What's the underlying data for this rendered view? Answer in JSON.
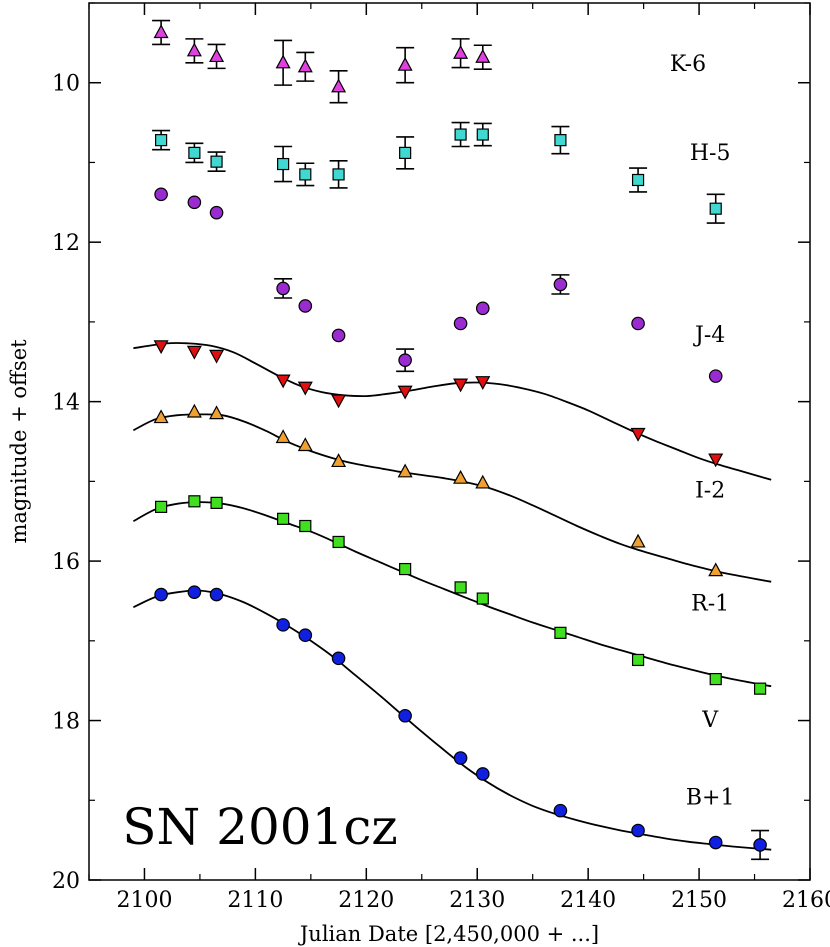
{
  "chart_data": {
    "type": "scatter",
    "title": "SN 2001cz",
    "xlabel": "Julian Date [2,450,000 + ...]",
    "ylabel": "magnitude + offset",
    "xlim": [
      2095,
      2160
    ],
    "ylim": [
      20,
      9
    ],
    "y_inverted": true,
    "x_ticks": [
      2100,
      2110,
      2120,
      2130,
      2140,
      2150,
      2160
    ],
    "y_ticks": [
      10,
      12,
      14,
      16,
      18,
      20
    ],
    "legend": "none",
    "series": [
      {
        "name": "K-6",
        "marker": "triangle-up",
        "color": "#e040e0",
        "x": [
          2101.5,
          2104.5,
          2106.5,
          2112.5,
          2114.5,
          2117.5,
          2123.5,
          2128.5,
          2130.5
        ],
        "y": [
          9.37,
          9.6,
          9.67,
          9.75,
          9.8,
          10.05,
          9.78,
          9.63,
          9.68
        ],
        "err": [
          0.15,
          0.15,
          0.15,
          0.28,
          0.18,
          0.2,
          0.22,
          0.18,
          0.15
        ]
      },
      {
        "name": "H-5",
        "marker": "square",
        "color": "#40d8d0",
        "x": [
          2101.5,
          2104.5,
          2106.5,
          2112.5,
          2114.5,
          2117.5,
          2123.5,
          2128.5,
          2130.5,
          2137.5,
          2144.5,
          2151.5
        ],
        "y": [
          10.72,
          10.88,
          10.99,
          11.02,
          11.15,
          11.15,
          10.88,
          10.65,
          10.65,
          10.72,
          11.22,
          11.58
        ],
        "err": [
          0.12,
          0.12,
          0.12,
          0.22,
          0.14,
          0.17,
          0.2,
          0.15,
          0.14,
          0.17,
          0.15,
          0.18
        ]
      },
      {
        "name": "J-4",
        "marker": "circle",
        "color": "#9a2bd0",
        "x": [
          2101.5,
          2104.5,
          2106.5,
          2112.5,
          2114.5,
          2117.5,
          2123.5,
          2128.5,
          2130.5,
          2137.5,
          2144.5,
          2151.5
        ],
        "y": [
          11.4,
          11.5,
          11.63,
          12.58,
          12.8,
          13.17,
          13.48,
          13.02,
          12.83,
          12.53,
          13.02,
          13.68
        ],
        "err": [
          0,
          0,
          0,
          0.12,
          0,
          0,
          0.14,
          0,
          0,
          0.12,
          0,
          0
        ]
      },
      {
        "name": "I-2",
        "marker": "triangle-down",
        "color": "#e01010",
        "x": [
          2101.5,
          2104.5,
          2106.5,
          2112.5,
          2114.5,
          2117.5,
          2123.5,
          2128.5,
          2130.5,
          2144.5,
          2151.5
        ],
        "y": [
          13.3,
          13.37,
          13.42,
          13.73,
          13.82,
          13.98,
          13.87,
          13.78,
          13.75,
          14.4,
          14.72
        ],
        "fit_x": [
          2099,
          2102,
          2104,
          2106,
          2108,
          2110,
          2112,
          2114,
          2116,
          2118,
          2120,
          2122,
          2124,
          2126,
          2128,
          2130,
          2132,
          2134,
          2136,
          2138,
          2140,
          2142,
          2144,
          2146,
          2148,
          2150,
          2152,
          2154,
          2156.5
        ],
        "fit_y": [
          13.33,
          13.27,
          13.27,
          13.3,
          13.38,
          13.52,
          13.67,
          13.8,
          13.88,
          13.92,
          13.93,
          13.9,
          13.86,
          13.81,
          13.77,
          13.76,
          13.78,
          13.83,
          13.9,
          14.0,
          14.11,
          14.24,
          14.37,
          14.49,
          14.6,
          14.71,
          14.8,
          14.88,
          14.98
        ]
      },
      {
        "name": "R-1",
        "marker": "triangle-up",
        "color": "#f0a030",
        "x": [
          2101.5,
          2104.5,
          2106.5,
          2112.5,
          2114.5,
          2117.5,
          2123.5,
          2128.5,
          2130.5,
          2144.5,
          2151.5
        ],
        "y": [
          14.2,
          14.13,
          14.15,
          14.45,
          14.55,
          14.75,
          14.88,
          14.96,
          15.02,
          15.76,
          16.12
        ],
        "fit_x": [
          2099,
          2101,
          2103,
          2105,
          2107,
          2109,
          2111,
          2113,
          2115,
          2117,
          2119,
          2121,
          2123,
          2125,
          2127,
          2129,
          2131,
          2133,
          2135,
          2137,
          2139,
          2141,
          2143,
          2145,
          2147,
          2149,
          2151,
          2153,
          2156.5
        ],
        "fit_y": [
          14.36,
          14.22,
          14.17,
          14.16,
          14.17,
          14.25,
          14.37,
          14.51,
          14.62,
          14.71,
          14.78,
          14.83,
          14.88,
          14.92,
          14.96,
          15.01,
          15.08,
          15.18,
          15.3,
          15.43,
          15.56,
          15.68,
          15.79,
          15.88,
          15.96,
          16.04,
          16.11,
          16.17,
          16.26
        ]
      },
      {
        "name": "V",
        "marker": "square",
        "color": "#40e020",
        "x": [
          2101.5,
          2104.5,
          2106.5,
          2112.5,
          2114.5,
          2117.5,
          2123.5,
          2128.5,
          2130.5,
          2137.5,
          2144.5,
          2151.5,
          2155.5
        ],
        "y": [
          15.32,
          15.25,
          15.27,
          15.47,
          15.56,
          15.76,
          16.1,
          16.33,
          16.47,
          16.9,
          17.24,
          17.48,
          17.6
        ],
        "fit_x": [
          2099,
          2101,
          2103,
          2105,
          2107,
          2109,
          2111,
          2113,
          2115,
          2117,
          2119,
          2121,
          2123,
          2125,
          2127,
          2129,
          2131,
          2133,
          2135,
          2137,
          2139,
          2141,
          2143,
          2145,
          2147,
          2149,
          2151,
          2153,
          2156.5
        ],
        "fit_y": [
          15.5,
          15.35,
          15.28,
          15.26,
          15.28,
          15.34,
          15.43,
          15.53,
          15.63,
          15.75,
          15.88,
          16.0,
          16.12,
          16.24,
          16.35,
          16.46,
          16.57,
          16.67,
          16.77,
          16.86,
          16.95,
          17.04,
          17.12,
          17.2,
          17.28,
          17.35,
          17.42,
          17.48,
          17.57
        ]
      },
      {
        "name": "B+1",
        "marker": "circle",
        "color": "#1020e0",
        "x": [
          2101.5,
          2104.5,
          2106.5,
          2112.5,
          2114.5,
          2117.5,
          2123.5,
          2128.5,
          2130.5,
          2137.5,
          2144.5,
          2151.5,
          2155.5
        ],
        "y": [
          16.42,
          16.39,
          16.42,
          16.8,
          16.93,
          17.22,
          17.94,
          18.47,
          18.67,
          19.13,
          19.38,
          19.53,
          19.56
        ],
        "err": [
          0,
          0,
          0,
          0,
          0,
          0,
          0,
          0,
          0,
          0,
          0,
          0,
          0.18
        ],
        "fit_x": [
          2099,
          2101,
          2103,
          2105,
          2107,
          2109,
          2111,
          2113,
          2115,
          2117,
          2119,
          2121,
          2123,
          2125,
          2127,
          2129,
          2131,
          2133,
          2135,
          2137,
          2139,
          2141,
          2143,
          2145,
          2147,
          2149,
          2151,
          2153,
          2156.5
        ],
        "fit_y": [
          16.58,
          16.45,
          16.39,
          16.37,
          16.42,
          16.52,
          16.66,
          16.82,
          17.0,
          17.2,
          17.43,
          17.66,
          17.9,
          18.14,
          18.37,
          18.59,
          18.78,
          18.94,
          19.07,
          19.17,
          19.25,
          19.32,
          19.38,
          19.43,
          19.48,
          19.52,
          19.55,
          19.58,
          19.62
        ]
      }
    ],
    "band_labels": [
      {
        "text": "K-6",
        "x": 2149,
        "y": 9.85
      },
      {
        "text": "H-5",
        "x": 2151,
        "y": 10.97
      },
      {
        "text": "J-4",
        "x": 2151,
        "y": 13.25
      },
      {
        "text": "I-2",
        "x": 2151,
        "y": 15.2
      },
      {
        "text": "R-1",
        "x": 2151,
        "y": 16.62
      },
      {
        "text": "V",
        "x": 2151,
        "y": 18.08
      },
      {
        "text": "B+1",
        "x": 2151,
        "y": 19.05
      }
    ],
    "title_position": {
      "x": 2098,
      "y": 19.3
    }
  }
}
